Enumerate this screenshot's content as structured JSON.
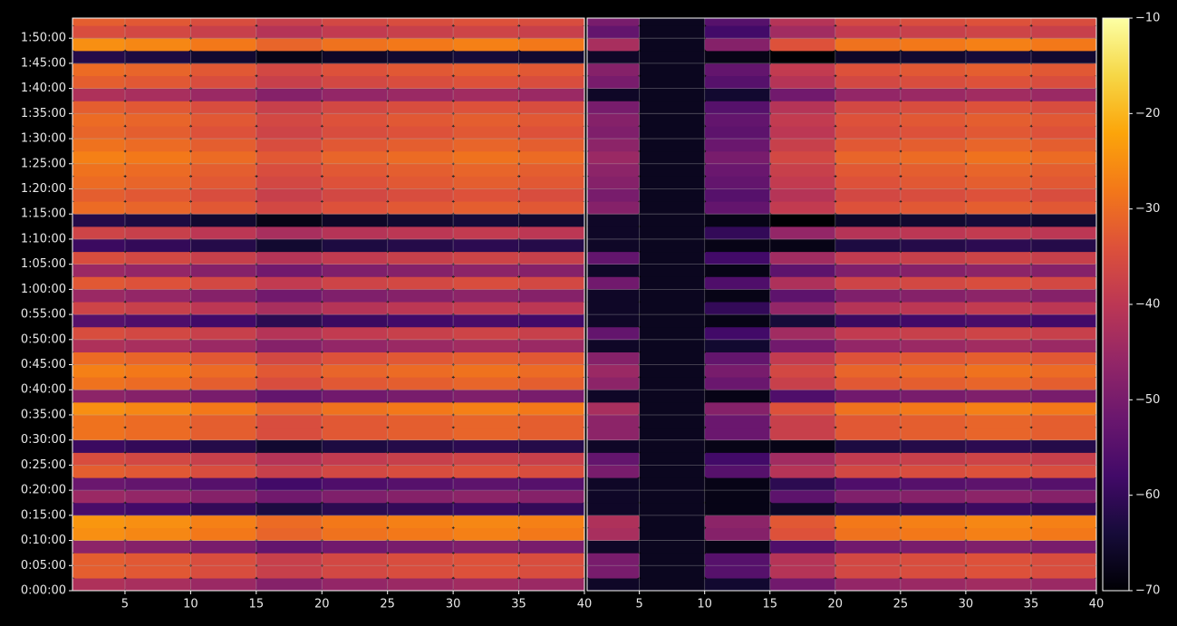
{
  "chart_data": [
    {
      "type": "heatmap",
      "colormap": "inferno",
      "grid": true,
      "xlim": [
        1,
        40
      ],
      "xticks": [
        5,
        10,
        15,
        20,
        25,
        30,
        35,
        40
      ],
      "ylim": [
        0,
        6840
      ],
      "yticks": [
        {
          "value": 0,
          "label": "0:00:00"
        },
        {
          "value": 300,
          "label": "0:05:00"
        },
        {
          "value": 600,
          "label": "0:10:00"
        },
        {
          "value": 900,
          "label": "0:15:00"
        },
        {
          "value": 1200,
          "label": "0:20:00"
        },
        {
          "value": 1500,
          "label": "0:25:00"
        },
        {
          "value": 1800,
          "label": "0:30:00"
        },
        {
          "value": 2100,
          "label": "0:35:00"
        },
        {
          "value": 2400,
          "label": "0:40:00"
        },
        {
          "value": 2700,
          "label": "0:45:00"
        },
        {
          "value": 3000,
          "label": "0:50:00"
        },
        {
          "value": 3300,
          "label": "0:55:00"
        },
        {
          "value": 3600,
          "label": "1:00:00"
        },
        {
          "value": 3900,
          "label": "1:05:00"
        },
        {
          "value": 4200,
          "label": "1:10:00"
        },
        {
          "value": 4500,
          "label": "1:15:00"
        },
        {
          "value": 4800,
          "label": "1:20:00"
        },
        {
          "value": 5100,
          "label": "1:25:00"
        },
        {
          "value": 5400,
          "label": "1:30:00"
        },
        {
          "value": 5700,
          "label": "1:35:00"
        },
        {
          "value": 6000,
          "label": "1:40:00"
        },
        {
          "value": 6300,
          "label": "1:45:00"
        },
        {
          "value": 6600,
          "label": "1:50:00"
        }
      ],
      "xbins": [
        1,
        5,
        10,
        15,
        20,
        25,
        30,
        35,
        40
      ],
      "ybins": [
        0,
        150,
        300,
        450,
        600,
        750,
        900,
        1050,
        1200,
        1350,
        1500,
        1650,
        1800,
        1950,
        2100,
        2250,
        2400,
        2550,
        2700,
        2850,
        3000,
        3150,
        3300,
        3450,
        3600,
        3750,
        3900,
        4050,
        4200,
        4350,
        4500,
        4650,
        4800,
        4950,
        5100,
        5250,
        5400,
        5550,
        5700,
        5850,
        6000,
        6150,
        6300,
        6450,
        6600,
        6750,
        6900
      ],
      "z": [
        [
          -42,
          -43,
          -45,
          -48,
          -46,
          -45,
          -44,
          -45
        ],
        [
          -32,
          -33,
          -35,
          -38,
          -36,
          -35,
          -34,
          -35
        ],
        [
          -32,
          -33,
          -35,
          -38,
          -36,
          -35,
          -34,
          -35
        ],
        [
          -47,
          -48,
          -50,
          -53,
          -51,
          -50,
          -49,
          -50
        ],
        [
          -25,
          -26,
          -28,
          -31,
          -29,
          -28,
          -27,
          -28
        ],
        [
          -24,
          -25,
          -27,
          -30,
          -28,
          -27,
          -26,
          -27
        ],
        [
          -57,
          -58,
          -60,
          -63,
          -61,
          -60,
          -59,
          -60
        ],
        [
          -45,
          -46,
          -48,
          -51,
          -49,
          -48,
          -47,
          -48
        ],
        [
          -52,
          -53,
          -55,
          -58,
          -56,
          -55,
          -54,
          -55
        ],
        [
          -32,
          -33,
          -35,
          -38,
          -36,
          -35,
          -34,
          -35
        ],
        [
          -35,
          -36,
          -38,
          -41,
          -39,
          -38,
          -37,
          -38
        ],
        [
          -59,
          -60,
          -62,
          -65,
          -63,
          -62,
          -61,
          -62
        ],
        [
          -29,
          -30,
          -32,
          -35,
          -33,
          -32,
          -31,
          -32
        ],
        [
          -29,
          -30,
          -32,
          -35,
          -33,
          -32,
          -31,
          -32
        ],
        [
          -25,
          -26,
          -28,
          -31,
          -29,
          -28,
          -27,
          -28
        ],
        [
          -47,
          -48,
          -50,
          -53,
          -51,
          -50,
          -49,
          -50
        ],
        [
          -29,
          -30,
          -32,
          -35,
          -33,
          -32,
          -31,
          -32
        ],
        [
          -27,
          -28,
          -30,
          -33,
          -31,
          -30,
          -29,
          -30
        ],
        [
          -30,
          -31,
          -33,
          -36,
          -34,
          -33,
          -32,
          -33
        ],
        [
          -42,
          -43,
          -45,
          -48,
          -46,
          -45,
          -44,
          -45
        ],
        [
          -35,
          -36,
          -38,
          -41,
          -39,
          -38,
          -37,
          -38
        ],
        [
          -55,
          -56,
          -58,
          -61,
          -59,
          -58,
          -57,
          -58
        ],
        [
          -37,
          -38,
          -40,
          -43,
          -41,
          -40,
          -39,
          -40
        ],
        [
          -45,
          -46,
          -48,
          -51,
          -49,
          -48,
          -47,
          -48
        ],
        [
          -33,
          -34,
          -36,
          -39,
          -37,
          -36,
          -35,
          -36
        ],
        [
          -45,
          -46,
          -48,
          -51,
          -49,
          -48,
          -47,
          -48
        ],
        [
          -35,
          -36,
          -38,
          -41,
          -39,
          -38,
          -37,
          -38
        ],
        [
          -59,
          -60,
          -62,
          -65,
          -63,
          -62,
          -61,
          -62
        ],
        [
          -37,
          -38,
          -40,
          -43,
          -41,
          -40,
          -39,
          -40
        ],
        [
          -62,
          -63,
          -65,
          -68,
          -66,
          -65,
          -64,
          -65
        ],
        [
          -30,
          -31,
          -33,
          -36,
          -34,
          -33,
          -32,
          -33
        ],
        [
          -32,
          -33,
          -35,
          -38,
          -36,
          -35,
          -34,
          -35
        ],
        [
          -30,
          -31,
          -33,
          -36,
          -34,
          -33,
          -32,
          -33
        ],
        [
          -29,
          -30,
          -32,
          -35,
          -33,
          -32,
          -31,
          -32
        ],
        [
          -27,
          -28,
          -30,
          -33,
          -31,
          -30,
          -29,
          -30
        ],
        [
          -29,
          -30,
          -32,
          -35,
          -33,
          -32,
          -31,
          -32
        ],
        [
          -31,
          -32,
          -34,
          -37,
          -35,
          -34,
          -33,
          -34
        ],
        [
          -30,
          -31,
          -33,
          -36,
          -34,
          -33,
          -32,
          -33
        ],
        [
          -32,
          -33,
          -35,
          -38,
          -36,
          -35,
          -34,
          -35
        ],
        [
          -42,
          -43,
          -45,
          -48,
          -46,
          -45,
          -44,
          -45
        ],
        [
          -32,
          -33,
          -35,
          -38,
          -36,
          -35,
          -34,
          -35
        ],
        [
          -30,
          -31,
          -33,
          -36,
          -34,
          -33,
          -32,
          -33
        ],
        [
          -62,
          -63,
          -65,
          -68,
          -66,
          -65,
          -64,
          -65
        ],
        [
          -25,
          -26,
          -28,
          -31,
          -29,
          -28,
          -27,
          -28
        ],
        [
          -35,
          -36,
          -38,
          -41,
          -39,
          -38,
          -37,
          -38
        ],
        [
          -32,
          -33,
          -35,
          -38,
          -36,
          -35,
          -34,
          -35
        ]
      ]
    },
    {
      "type": "heatmap",
      "colormap": "inferno",
      "grid": true,
      "xlim": [
        1,
        40
      ],
      "xticks": [
        5,
        10,
        15,
        20,
        25,
        30,
        35,
        40
      ],
      "xbins": [
        1,
        5,
        10,
        15,
        20,
        25,
        30,
        35,
        40
      ],
      "clim": [
        -70,
        -10
      ],
      "cticks": [
        {
          "value": -70,
          "label": "−70"
        },
        {
          "value": -60,
          "label": "−60"
        },
        {
          "value": -50,
          "label": "−50"
        },
        {
          "value": -40,
          "label": "−40"
        },
        {
          "value": -30,
          "label": "−30"
        },
        {
          "value": -20,
          "label": "−20"
        },
        {
          "value": -10,
          "label": "−10"
        }
      ],
      "z": [
        [
          -66,
          -67,
          -65,
          -51,
          -46,
          -45,
          -44,
          -45
        ],
        [
          -50,
          -67,
          -55,
          -41,
          -36,
          -35,
          -34,
          -35
        ],
        [
          -50,
          -67,
          -55,
          -41,
          -36,
          -35,
          -34,
          -35
        ],
        [
          -66,
          -67,
          -68,
          -56,
          -51,
          -50,
          -49,
          -50
        ],
        [
          -43,
          -67,
          -48,
          -34,
          -29,
          -28,
          -27,
          -28
        ],
        [
          -42,
          -67,
          -47,
          -33,
          -28,
          -27,
          -26,
          -27
        ],
        [
          -66,
          -67,
          -68,
          -66,
          -61,
          -60,
          -59,
          -60
        ],
        [
          -66,
          -67,
          -68,
          -54,
          -49,
          -48,
          -47,
          -48
        ],
        [
          -66,
          -67,
          -68,
          -61,
          -56,
          -55,
          -54,
          -55
        ],
        [
          -50,
          -67,
          -55,
          -41,
          -36,
          -35,
          -34,
          -35
        ],
        [
          -53,
          -67,
          -58,
          -44,
          -39,
          -38,
          -37,
          -38
        ],
        [
          -66,
          -67,
          -68,
          -68,
          -63,
          -62,
          -61,
          -62
        ],
        [
          -47,
          -67,
          -52,
          -38,
          -33,
          -32,
          -31,
          -32
        ],
        [
          -47,
          -67,
          -52,
          -38,
          -33,
          -32,
          -31,
          -32
        ],
        [
          -43,
          -67,
          -48,
          -34,
          -29,
          -28,
          -27,
          -28
        ],
        [
          -66,
          -67,
          -68,
          -56,
          -51,
          -50,
          -49,
          -50
        ],
        [
          -47,
          -67,
          -52,
          -38,
          -33,
          -32,
          -31,
          -32
        ],
        [
          -45,
          -67,
          -50,
          -36,
          -31,
          -30,
          -29,
          -30
        ],
        [
          -48,
          -67,
          -53,
          -39,
          -34,
          -33,
          -32,
          -33
        ],
        [
          -66,
          -67,
          -65,
          -51,
          -46,
          -45,
          -44,
          -45
        ],
        [
          -53,
          -67,
          -58,
          -44,
          -39,
          -38,
          -37,
          -38
        ],
        [
          -66,
          -67,
          -68,
          -64,
          -59,
          -58,
          -57,
          -58
        ],
        [
          -66,
          -67,
          -60,
          -46,
          -41,
          -40,
          -39,
          -40
        ],
        [
          -66,
          -67,
          -68,
          -54,
          -49,
          -48,
          -47,
          -48
        ],
        [
          -51,
          -67,
          -56,
          -42,
          -37,
          -36,
          -35,
          -36
        ],
        [
          -66,
          -67,
          -68,
          -54,
          -49,
          -48,
          -47,
          -48
        ],
        [
          -53,
          -67,
          -58,
          -44,
          -39,
          -38,
          -37,
          -38
        ],
        [
          -66,
          -67,
          -68,
          -68,
          -63,
          -62,
          -61,
          -62
        ],
        [
          -66,
          -67,
          -60,
          -46,
          -41,
          -40,
          -39,
          -40
        ],
        [
          -66,
          -67,
          -68,
          -70,
          -66,
          -65,
          -64,
          -65
        ],
        [
          -48,
          -67,
          -53,
          -39,
          -34,
          -33,
          -32,
          -33
        ],
        [
          -50,
          -67,
          -55,
          -41,
          -36,
          -35,
          -34,
          -35
        ],
        [
          -48,
          -67,
          -53,
          -39,
          -34,
          -33,
          -32,
          -33
        ],
        [
          -47,
          -67,
          -52,
          -38,
          -33,
          -32,
          -31,
          -32
        ],
        [
          -45,
          -67,
          -50,
          -36,
          -31,
          -30,
          -29,
          -30
        ],
        [
          -47,
          -67,
          -52,
          -38,
          -33,
          -32,
          -31,
          -32
        ],
        [
          -49,
          -67,
          -54,
          -40,
          -35,
          -34,
          -33,
          -34
        ],
        [
          -48,
          -67,
          -53,
          -39,
          -34,
          -33,
          -32,
          -33
        ],
        [
          -50,
          -67,
          -55,
          -41,
          -36,
          -35,
          -34,
          -35
        ],
        [
          -66,
          -67,
          -65,
          -51,
          -46,
          -45,
          -44,
          -45
        ],
        [
          -50,
          -67,
          -55,
          -41,
          -36,
          -35,
          -34,
          -35
        ],
        [
          -48,
          -67,
          -53,
          -39,
          -34,
          -33,
          -32,
          -33
        ],
        [
          -66,
          -67,
          -68,
          -70,
          -66,
          -65,
          -64,
          -65
        ],
        [
          -43,
          -67,
          -48,
          -34,
          -29,
          -28,
          -27,
          -28
        ],
        [
          -53,
          -67,
          -58,
          -44,
          -39,
          -38,
          -37,
          -38
        ],
        [
          -50,
          -67,
          -55,
          -41,
          -36,
          -35,
          -34,
          -35
        ]
      ]
    }
  ]
}
